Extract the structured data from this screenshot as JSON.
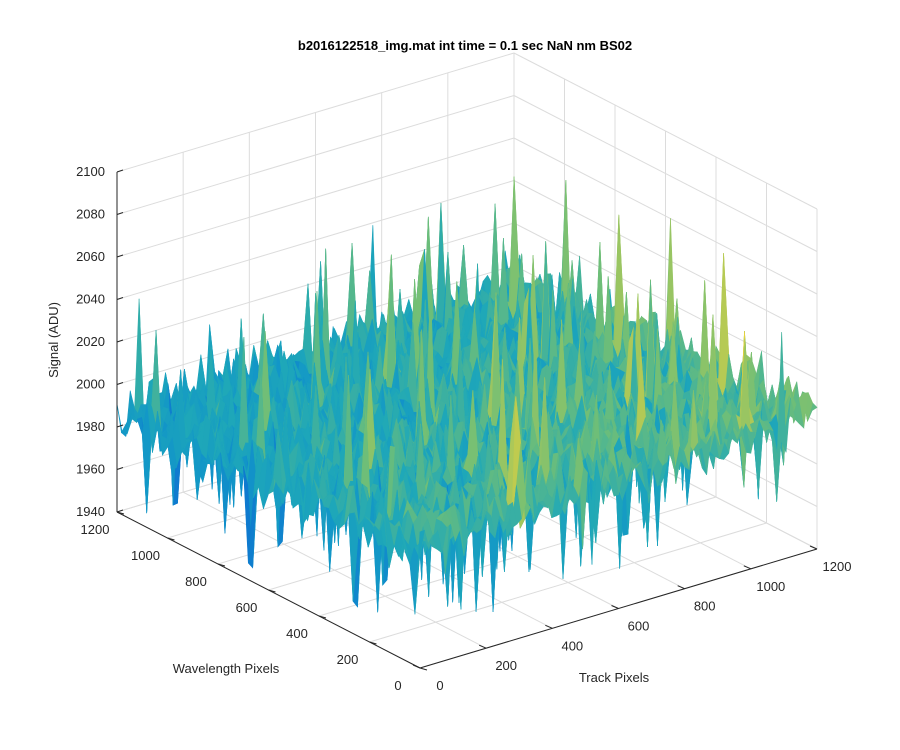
{
  "chart_data": {
    "type": "surface3d",
    "title": "b2016122518_img.mat int time = 0.1 sec  NaN nm BS02",
    "xlabel": "Track Pixels",
    "ylabel": "Wavelength Pixels",
    "zlabel": "Signal (ADU)",
    "xlim": [
      0,
      1200
    ],
    "ylim": [
      0,
      1200
    ],
    "zlim": [
      1940,
      2100
    ],
    "xticks": [
      "0",
      "200",
      "400",
      "600",
      "800",
      "1000",
      "1200"
    ],
    "yticks": [
      "0",
      "200",
      "400",
      "600",
      "800",
      "1000",
      "1200"
    ],
    "zticks": [
      "1940",
      "1960",
      "1980",
      "2000",
      "2020",
      "2040",
      "2060",
      "2080",
      "2100"
    ],
    "grid": true,
    "colormap": "parula",
    "colors": {
      "low": "#0b5fd6",
      "mid": "#1fa8b8",
      "high": "#e8d23a",
      "grid": "#dcdcdc",
      "axis": "#262626"
    },
    "surface_description_values": {
      "typical_signal": 1995,
      "max_signal": 2095,
      "min_signal": 1945
    }
  }
}
